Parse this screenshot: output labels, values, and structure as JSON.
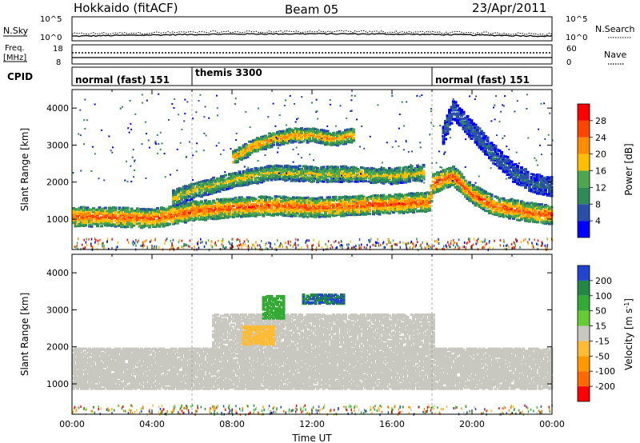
{
  "header": {
    "title": "Hokkaido (fitACF)",
    "beam": "Beam 05",
    "date": "23/Apr/2011"
  },
  "nsky_panel": {
    "left_label": "N.Sky",
    "right_label": "N.Search",
    "left_ticks": [
      "10^5",
      "10^0"
    ],
    "right_ticks": [
      "10^5",
      "10^0"
    ]
  },
  "freq_panel": {
    "left_label_1": "Freq.",
    "left_label_2": "[MHz]",
    "right_label": "Nave",
    "left_ticks": [
      "18",
      "8"
    ],
    "right_ticks": [
      "60",
      "0"
    ]
  },
  "cpid_panel": {
    "label": "CPID",
    "modes": [
      {
        "name": "normal (fast) 151",
        "start_hour": 0,
        "end_hour": 6
      },
      {
        "name": "themis 3300",
        "start_hour": 6,
        "end_hour": 18
      },
      {
        "name": "normal (fast) 151",
        "start_hour": 18,
        "end_hour": 24
      }
    ]
  },
  "colors": {
    "power": [
      "#0000ff",
      "#2a4fa8",
      "#2e8b57",
      "#4ea64e",
      "#ffbf00",
      "#ff8c00",
      "#ff4500",
      "#ff0000"
    ],
    "velocity": [
      "#ff0000",
      "#ff6a00",
      "#ff9900",
      "#ffbb33",
      "#c8c8c0",
      "#66cc33",
      "#33aa33",
      "#228844",
      "#2244cc"
    ]
  },
  "chart_data": [
    {
      "type": "heatmap",
      "name": "power",
      "ylabel": "Slant Range [km]",
      "ylim": [
        180,
        4500
      ],
      "yticks": [
        "1000",
        "2000",
        "3000",
        "4000"
      ],
      "xlim": [
        0,
        24
      ],
      "colorbar": {
        "label": "Power [dB]",
        "tick_labels": [
          "4",
          "8",
          "12",
          "16",
          "20",
          "24",
          "28"
        ],
        "range": [
          0,
          32
        ]
      },
      "bands": [
        {
          "x": [
            0,
            2,
            4,
            6,
            8,
            10,
            12,
            14,
            16,
            17.8,
            18,
            19,
            20,
            21,
            22,
            23,
            24
          ],
          "y": [
            1100,
            1100,
            1050,
            1250,
            1350,
            1400,
            1350,
            1400,
            1450,
            1500,
            2000,
            2200,
            1700,
            1400,
            1300,
            1200,
            1150
          ],
          "width": 250,
          "level": 26
        },
        {
          "x": [
            5,
            6,
            8,
            10,
            12,
            14,
            16,
            17.5
          ],
          "y": [
            1600,
            1800,
            2100,
            2300,
            2250,
            2250,
            2200,
            2300
          ],
          "width": 200,
          "level": 18
        },
        {
          "x": [
            8,
            9,
            10,
            11,
            12,
            13,
            14
          ],
          "y": [
            2700,
            3000,
            3200,
            3300,
            3300,
            3200,
            3300
          ],
          "width": 180,
          "level": 22
        },
        {
          "x": [
            18.5,
            19,
            20,
            21,
            22,
            23,
            24
          ],
          "y": [
            3300,
            4000,
            3400,
            2800,
            2300,
            2000,
            1900
          ],
          "width": 250,
          "level": 8
        }
      ]
    },
    {
      "type": "heatmap",
      "name": "velocity",
      "ylabel": "Slant Range [km]",
      "xlabel": "Time UT",
      "ylim": [
        180,
        4500
      ],
      "yticks": [
        "1000",
        "2000",
        "3000",
        "4000"
      ],
      "xlim": [
        0,
        24
      ],
      "xticks": [
        "00:00",
        "04:00",
        "08:00",
        "12:00",
        "16:00",
        "20:00",
        "00:00"
      ],
      "colorbar": {
        "label": "Velocity [m s",
        "label_superscript": "-1",
        "label_end": "]",
        "tick_labels": [
          "-200",
          "-100",
          "-50",
          "-15",
          "15",
          "50",
          "100",
          "200"
        ]
      },
      "regions": [
        {
          "name": "ground scatter",
          "x": [
            0,
            24
          ],
          "y": [
            900,
            2000
          ],
          "velocity": 0
        },
        {
          "name": "upper echoes",
          "x": [
            7,
            18
          ],
          "y": [
            2000,
            2900
          ],
          "velocity": 0
        },
        {
          "name": "westward patch",
          "x": [
            11.5,
            13.5
          ],
          "y": [
            3200,
            3450
          ],
          "velocity": 200
        },
        {
          "name": "green patch",
          "x": [
            9.5,
            10.5
          ],
          "y": [
            2800,
            3400
          ],
          "velocity": 60
        },
        {
          "name": "orange patch",
          "x": [
            8.5,
            10
          ],
          "y": [
            2100,
            2600
          ],
          "velocity": -40
        }
      ]
    }
  ]
}
